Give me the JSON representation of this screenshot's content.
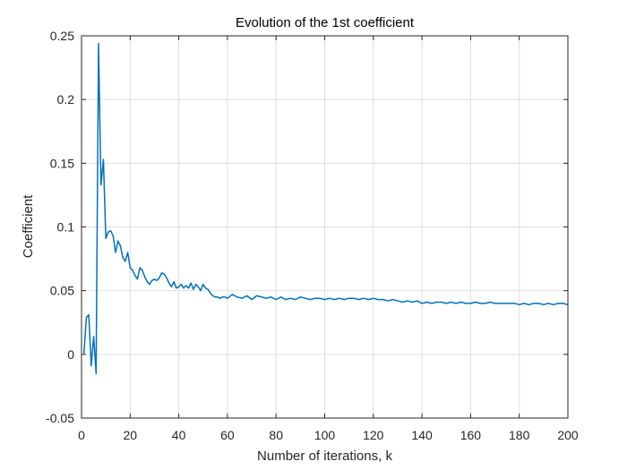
{
  "chart_data": {
    "type": "line",
    "title": "Evolution of the 1st coefficient",
    "xlabel": "Number of iterations, k",
    "ylabel": "Coefficient",
    "xlim": [
      0,
      200
    ],
    "ylim": [
      -0.05,
      0.25
    ],
    "grid": true,
    "line_color": "#0072BD",
    "x_ticks": [
      0,
      20,
      40,
      60,
      80,
      100,
      120,
      140,
      160,
      180,
      200
    ],
    "x_tick_labels": [
      "0",
      "20",
      "40",
      "60",
      "80",
      "100",
      "120",
      "140",
      "160",
      "180",
      "200"
    ],
    "y_ticks": [
      -0.05,
      0,
      0.05,
      0.1,
      0.15,
      0.2,
      0.25
    ],
    "y_tick_labels": [
      "-0.05",
      "0",
      "0.05",
      "0.1",
      "0.15",
      "0.2",
      "0.25"
    ],
    "series": [
      {
        "x": [
          1,
          2,
          3,
          4,
          5,
          6,
          7,
          8,
          9,
          10,
          11,
          12,
          13,
          14,
          15,
          16,
          17,
          18,
          19,
          20,
          21,
          22,
          23,
          24,
          25,
          26,
          27,
          28,
          29,
          30,
          31,
          32,
          33,
          34,
          35,
          36,
          37,
          38,
          39,
          40,
          41,
          42,
          43,
          44,
          45,
          46,
          47,
          48,
          49,
          50,
          51,
          52,
          53,
          54,
          55,
          56,
          57,
          58,
          59,
          60,
          62,
          64,
          66,
          68,
          70,
          72,
          74,
          76,
          78,
          80,
          82,
          84,
          86,
          88,
          90,
          92,
          94,
          96,
          98,
          100,
          102,
          104,
          106,
          108,
          110,
          112,
          114,
          116,
          118,
          120,
          122,
          124,
          126,
          128,
          130,
          132,
          134,
          136,
          138,
          140,
          142,
          144,
          146,
          148,
          150,
          152,
          154,
          156,
          158,
          160,
          162,
          164,
          166,
          168,
          170,
          172,
          174,
          176,
          178,
          180,
          182,
          184,
          186,
          188,
          190,
          192,
          194,
          196,
          198,
          200
        ],
        "values": [
          0.001,
          0.029,
          0.031,
          -0.009,
          0.014,
          -0.015,
          0.244,
          0.133,
          0.153,
          0.091,
          0.096,
          0.097,
          0.093,
          0.08,
          0.089,
          0.085,
          0.076,
          0.073,
          0.08,
          0.068,
          0.066,
          0.062,
          0.059,
          0.068,
          0.066,
          0.061,
          0.057,
          0.055,
          0.058,
          0.059,
          0.058,
          0.06,
          0.064,
          0.063,
          0.06,
          0.056,
          0.053,
          0.057,
          0.052,
          0.053,
          0.055,
          0.052,
          0.054,
          0.052,
          0.056,
          0.051,
          0.055,
          0.053,
          0.05,
          0.055,
          0.052,
          0.051,
          0.048,
          0.046,
          0.045,
          0.045,
          0.044,
          0.045,
          0.045,
          0.044,
          0.047,
          0.045,
          0.044,
          0.046,
          0.043,
          0.046,
          0.045,
          0.044,
          0.045,
          0.043,
          0.045,
          0.043,
          0.044,
          0.043,
          0.045,
          0.044,
          0.043,
          0.044,
          0.044,
          0.043,
          0.044,
          0.043,
          0.044,
          0.043,
          0.044,
          0.044,
          0.043,
          0.044,
          0.043,
          0.044,
          0.043,
          0.043,
          0.042,
          0.043,
          0.042,
          0.041,
          0.042,
          0.041,
          0.042,
          0.04,
          0.041,
          0.04,
          0.041,
          0.041,
          0.04,
          0.041,
          0.04,
          0.041,
          0.04,
          0.04,
          0.041,
          0.04,
          0.04,
          0.041,
          0.04,
          0.04,
          0.04,
          0.04,
          0.04,
          0.039,
          0.04,
          0.039,
          0.04,
          0.04,
          0.039,
          0.04,
          0.039,
          0.04,
          0.04,
          0.039
        ]
      }
    ]
  }
}
